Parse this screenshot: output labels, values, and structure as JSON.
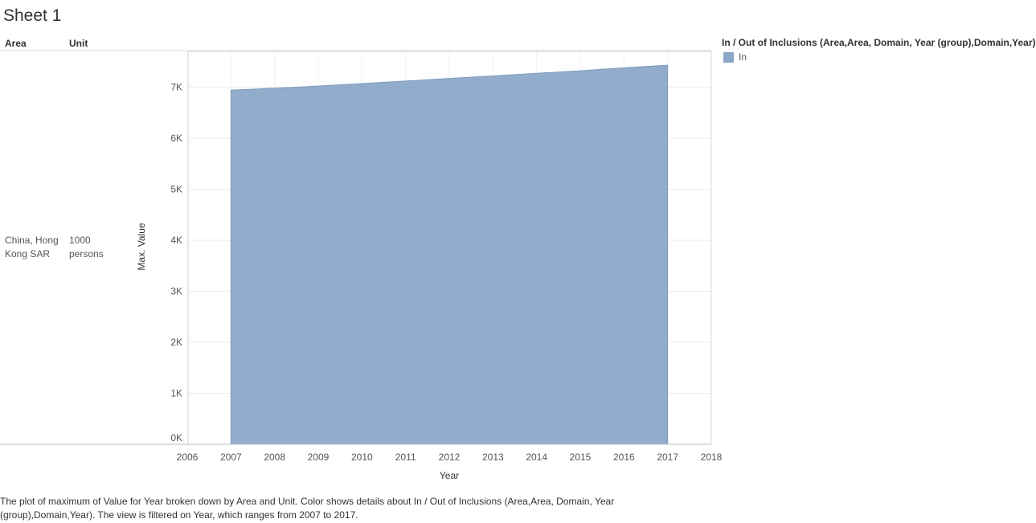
{
  "sheet_title": "Sheet 1",
  "headers": {
    "area": "Area",
    "unit": "Unit"
  },
  "row": {
    "area": "China, Hong Kong SAR",
    "unit": "1000 persons"
  },
  "legend": {
    "title": "In / Out of Inclusions (Area,Area, Domain, Year (group),Domain,Year)",
    "items": [
      {
        "label": "In",
        "color": "#8aa7c8"
      }
    ]
  },
  "caption": "The plot of maximum of  Value for Year broken down by Area and Unit.  Color shows details about In / Out of Inclusions (Area,Area, Domain, Year (group),Domain,Year). The view is filtered on Year, which ranges from 2007 to 2017.",
  "chart_data": {
    "type": "area",
    "xlabel": "Year",
    "ylabel": "Max. Value",
    "x_ticks": [
      "2006",
      "2007",
      "2008",
      "2009",
      "2010",
      "2011",
      "2012",
      "2013",
      "2014",
      "2015",
      "2016",
      "2017",
      "2018"
    ],
    "y_ticks": [
      "0K",
      "1K",
      "2K",
      "3K",
      "4K",
      "5K",
      "6K",
      "7K"
    ],
    "xlim": [
      2006,
      2018
    ],
    "ylim": [
      0,
      7.7
    ],
    "grid": true,
    "series": [
      {
        "name": "In",
        "color": "#8aa7c8",
        "x": [
          2007,
          2008,
          2009,
          2010,
          2011,
          2012,
          2013,
          2014,
          2015,
          2016,
          2017
        ],
        "values": [
          6.94,
          6.98,
          7.02,
          7.07,
          7.12,
          7.17,
          7.22,
          7.27,
          7.32,
          7.38,
          7.43
        ]
      }
    ]
  }
}
